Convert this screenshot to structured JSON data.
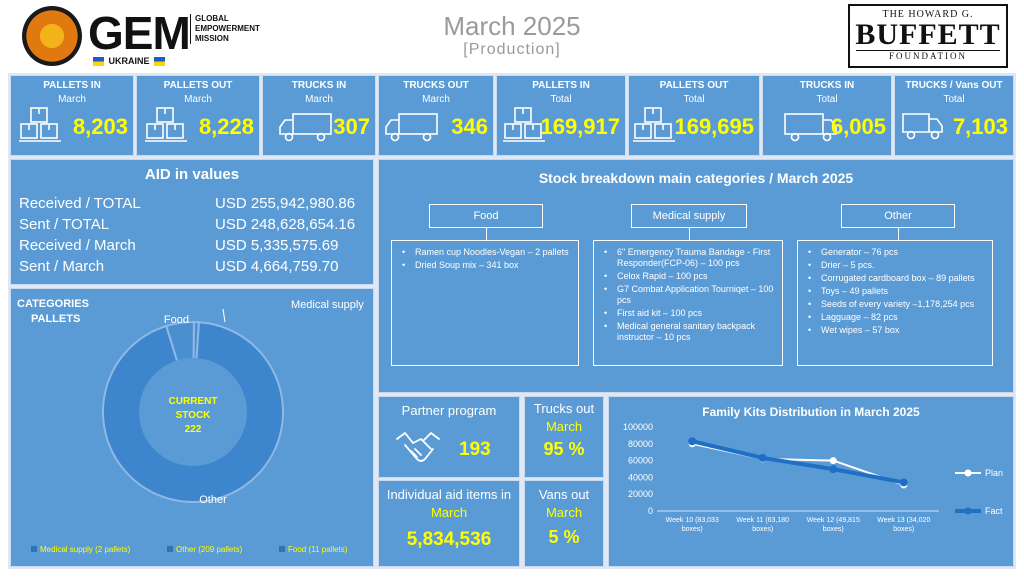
{
  "header": {
    "org_name": "GEM",
    "org_line1": "GLOBAL",
    "org_line2": "EMPOWERMENT",
    "org_line3": "MISSION",
    "country": "UKRAINE",
    "title": "March 2025",
    "subtitle": "[Production]",
    "partner_line1": "THE HOWARD G.",
    "partner_line2": "BUFFETT",
    "partner_line3": "FOUNDATION"
  },
  "kpis": [
    {
      "title": "PALLETS IN",
      "sub": "March",
      "value": "8,203",
      "icon": "pallet-boxes-icon"
    },
    {
      "title": "PALLETS OUT",
      "sub": "March",
      "value": "8,228",
      "icon": "pallet-boxes-icon"
    },
    {
      "title": "TRUCKS IN",
      "sub": "March",
      "value": "307",
      "icon": "truck-icon"
    },
    {
      "title": "TRUCKS OUT",
      "sub": "March",
      "value": "346",
      "icon": "truck-icon"
    },
    {
      "title": "PALLETS IN",
      "sub": "Total",
      "value": "169,917",
      "icon": "pallet-boxes-icon"
    },
    {
      "title": "PALLETS OUT",
      "sub": "Total",
      "value": "169,695",
      "icon": "pallet-boxes-icon"
    },
    {
      "title": "TRUCKS IN",
      "sub": "Total",
      "value": "6,005",
      "icon": "truck-icon"
    },
    {
      "title": "TRUCKS / Vans OUT",
      "sub": "Total",
      "value": "7,103",
      "icon": "van-icon"
    }
  ],
  "aid": {
    "title": "AID in values",
    "rows": [
      {
        "label": "Received / TOTAL",
        "value": "USD 255,942,980.86"
      },
      {
        "label": "Sent / TOTAL",
        "value": "USD 248,628,654.16"
      },
      {
        "label": "Received / March",
        "value": "USD 5,335,575.69"
      },
      {
        "label": "Sent / March",
        "value": "USD 4,664,759.70"
      }
    ]
  },
  "categories": {
    "title": "CATEGORIES",
    "subtitle": "PALLETS",
    "center_line1": "CURRENT",
    "center_line2": "STOCK",
    "center_value": "222",
    "label_food": "Food",
    "label_medical": "Medical supply",
    "label_other": "Other",
    "legend": [
      {
        "label": "Medical supply (2 pallets)"
      },
      {
        "label": "Other (209 pallets)"
      },
      {
        "label": "Food (11 pallets)"
      }
    ]
  },
  "stock": {
    "title": "Stock breakdown main categories / March 2025",
    "food": {
      "header": "Food",
      "items": [
        "Ramen cup Noodles-Vegan – 2 pallets",
        "Dried Soup mix – 341 box"
      ]
    },
    "medical": {
      "header": "Medical supply",
      "items": [
        "6\" Emergency Trauma Bandage - First Responder(FCP-06) – 100 pcs",
        "Celox Rapid – 100 pcs",
        "G7 Combat Application Tourniqet – 100 pcs",
        "First aid kit – 100 pcs",
        "Medical general sanitary backpack instructor – 10 pcs"
      ]
    },
    "other": {
      "header": "Other",
      "items": [
        "Generator – 76 pcs",
        "Drier – 5 pcs.",
        "Corrugated cardboard box – 89 pallets",
        "Toys – 49 pallets",
        "Seeds of every variety –1,178,254 pcs",
        "Lagguage – 82 pcs",
        "Wet wipes – 57 box"
      ]
    }
  },
  "partner": {
    "title": "Partner program",
    "value": "193",
    "icon": "handshake-icon"
  },
  "individual": {
    "title": "Individual aid items in",
    "sub": "March",
    "value": "5,834,536"
  },
  "trucks_out": {
    "title": "Trucks out",
    "sub": "March",
    "value": "95 %"
  },
  "vans_out": {
    "title": "Vans out",
    "sub": "March",
    "value": "5 %"
  },
  "colors": {
    "panel": "#5b9bd5",
    "highlight": "#ffff00",
    "fact": "#1f6fc5",
    "plan": "#ffffff"
  },
  "chart_data": [
    {
      "type": "pie",
      "title": "CATEGORIES PALLETS",
      "categories": [
        "Medical supply",
        "Other",
        "Food"
      ],
      "values": [
        2,
        209,
        11
      ],
      "legend": "bottom"
    },
    {
      "type": "line",
      "title": "Family Kits Distribution in March 2025",
      "categories": [
        "Week 10 (83,033 boxes)",
        "Week 11 (63,180 boxes)",
        "Week 12 (49,815 boxes)",
        "Week 13 (34,020 boxes)"
      ],
      "series": [
        {
          "name": "Plan",
          "values": [
            80000,
            62000,
            60000,
            31000
          ]
        },
        {
          "name": "Fact",
          "values": [
            83033,
            63180,
            49815,
            34020
          ]
        }
      ],
      "ylim": [
        0,
        100000
      ],
      "yticks": [
        "0",
        "20000",
        "40000",
        "60000",
        "80000",
        "100000"
      ],
      "legend": "right",
      "grid": false
    }
  ]
}
